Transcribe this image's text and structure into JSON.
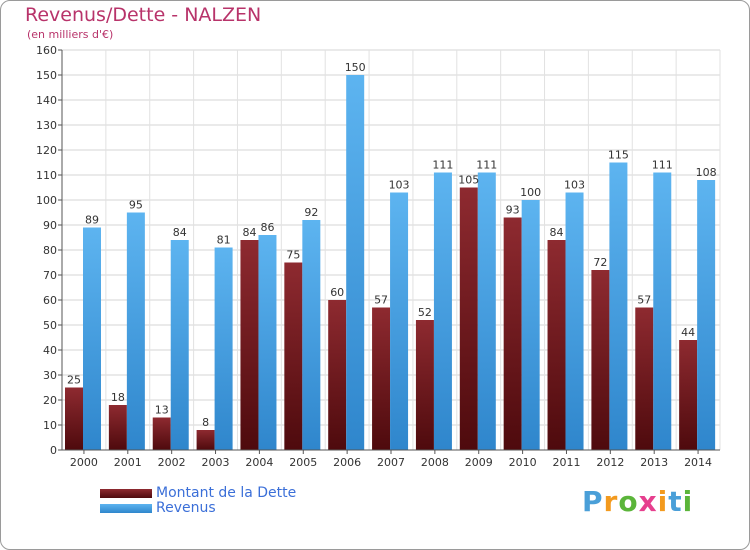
{
  "title": "Revenus/Dette - NALZEN",
  "subtitle": "(en milliers d'€)",
  "chart_data": {
    "type": "bar",
    "categories": [
      "2000",
      "2001",
      "2002",
      "2003",
      "2004",
      "2005",
      "2006",
      "2007",
      "2008",
      "2009",
      "2010",
      "2011",
      "2012",
      "2013",
      "2014"
    ],
    "series": [
      {
        "name": "Montant de la Dette",
        "color": "#7a1a1f",
        "values": [
          25,
          18,
          13,
          8,
          84,
          75,
          60,
          57,
          52,
          105,
          93,
          84,
          72,
          57,
          44
        ]
      },
      {
        "name": "Revenus",
        "color": "#4aa3e6",
        "values": [
          89,
          95,
          84,
          81,
          86,
          92,
          150,
          103,
          111,
          111,
          100,
          103,
          115,
          111,
          108
        ]
      }
    ],
    "ylim": [
      0,
      160
    ],
    "yticks": [
      0,
      10,
      20,
      30,
      40,
      50,
      60,
      70,
      80,
      90,
      100,
      110,
      120,
      130,
      140,
      150,
      160
    ],
    "grid": true,
    "legend": "bottom-left"
  },
  "logo": {
    "letters": [
      "P",
      "r",
      "o",
      "x",
      "i",
      "t",
      "i"
    ],
    "colors": [
      "#4a9fd8",
      "#f39a1e",
      "#5bb53a",
      "#e63f8e",
      "#f39a1e",
      "#4a9fd8",
      "#5bb53a"
    ]
  }
}
